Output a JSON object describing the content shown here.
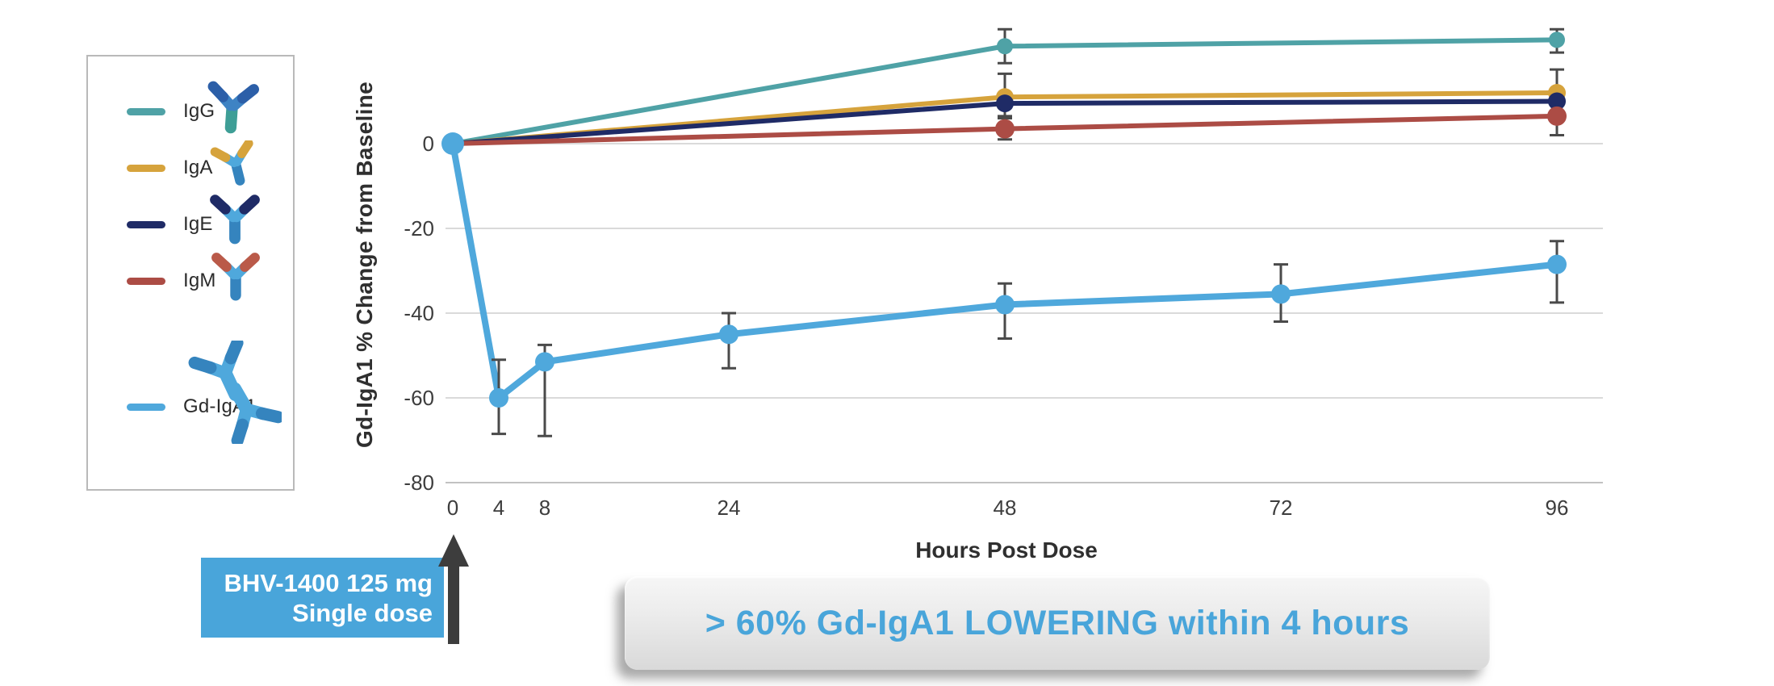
{
  "legend": {
    "items": [
      {
        "label": "IgG",
        "color": "#4FA2A6",
        "icon": "igg-antibody"
      },
      {
        "label": "IgA",
        "color": "#D6A33C",
        "icon": "iga-antibody"
      },
      {
        "label": "IgE",
        "color": "#1F2B66",
        "icon": "ige-antibody"
      },
      {
        "label": "IgM",
        "color": "#AC4C45",
        "icon": "igm-antibody"
      },
      {
        "label": "Gd-IgA1",
        "color": "#4FA8DC",
        "icon": "gdiga1-antibody"
      }
    ]
  },
  "chart_data": {
    "type": "line",
    "title": "",
    "xlabel": "Hours Post Dose",
    "ylabel": "Gd-IgA1 % Change from Baseline",
    "x_ticks": [
      0,
      4,
      8,
      24,
      48,
      72,
      96
    ],
    "y_ticks": [
      0,
      -20,
      -40,
      -60,
      -80
    ],
    "xlim": [
      0,
      96
    ],
    "ylim": [
      -80,
      30
    ],
    "grid": "horizontal",
    "legend_position": "left",
    "series": [
      {
        "name": "IgG",
        "color": "#4FA2A6",
        "points": [
          {
            "x": 0,
            "y": 0
          },
          {
            "x": 48,
            "y": 23,
            "lo": 19,
            "hi": 27
          },
          {
            "x": 96,
            "y": 24.5,
            "lo": 21.5,
            "hi": 27
          }
        ]
      },
      {
        "name": "IgA",
        "color": "#D6A33C",
        "points": [
          {
            "x": 0,
            "y": 0
          },
          {
            "x": 48,
            "y": 11,
            "lo": 6.5,
            "hi": 16.5
          },
          {
            "x": 96,
            "y": 12,
            "lo": 7.5,
            "hi": 17.5
          }
        ]
      },
      {
        "name": "IgE",
        "color": "#1F2B66",
        "points": [
          {
            "x": 0,
            "y": 0
          },
          {
            "x": 48,
            "y": 9.5
          },
          {
            "x": 96,
            "y": 10
          }
        ]
      },
      {
        "name": "IgM",
        "color": "#AC4C45",
        "points": [
          {
            "x": 0,
            "y": 0
          },
          {
            "x": 48,
            "y": 3.5,
            "lo": 1,
            "hi": 6
          },
          {
            "x": 96,
            "y": 6.5,
            "lo": 2,
            "hi": 11
          }
        ]
      },
      {
        "name": "Gd-IgA1",
        "color": "#4FA8DC",
        "points": [
          {
            "x": 0,
            "y": 0
          },
          {
            "x": 4,
            "y": -60,
            "lo": -68.5,
            "hi": -51
          },
          {
            "x": 8,
            "y": -51.5,
            "lo": -69,
            "hi": -47.5
          },
          {
            "x": 24,
            "y": -45,
            "lo": -53,
            "hi": -40
          },
          {
            "x": 48,
            "y": -38,
            "lo": -46,
            "hi": -33
          },
          {
            "x": 72,
            "y": -35.5,
            "lo": -42,
            "hi": -28.5
          },
          {
            "x": 96,
            "y": -28.5,
            "lo": -37.5,
            "hi": -23
          }
        ]
      }
    ]
  },
  "dose_callout": {
    "line1": "BHV-1400 125 mg",
    "line2": "Single dose",
    "bg_color": "#49A5DA",
    "arrow_color": "#3d3d3d"
  },
  "banner": {
    "text": "> 60% Gd-IgA1 LOWERING within 4 hours",
    "text_color": "#49A5DA"
  }
}
